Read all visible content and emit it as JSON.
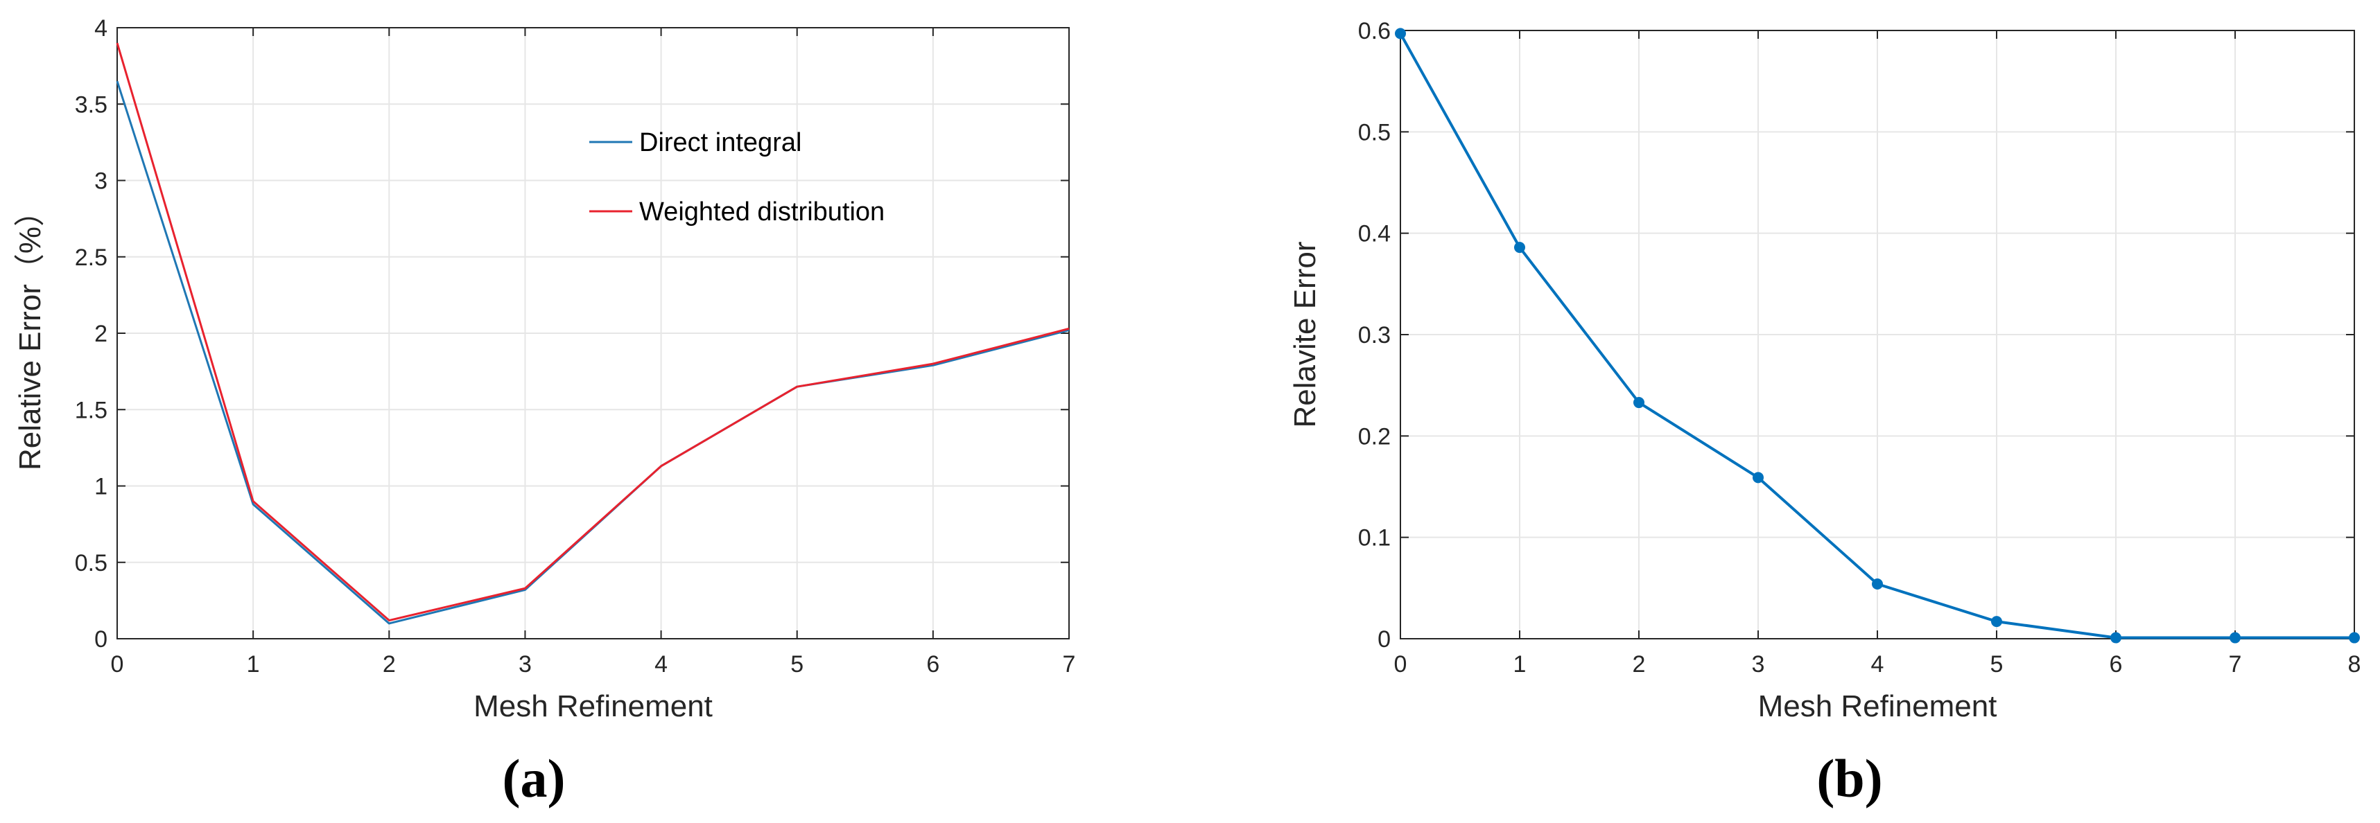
{
  "chart_data": [
    {
      "panel": "a",
      "type": "line",
      "caption": "(a)",
      "xlabel": "Mesh Refinement",
      "ylabel": "Relative Error（%）",
      "xlim": [
        0,
        7
      ],
      "ylim": [
        0,
        4
      ],
      "xticks": [
        0,
        1,
        2,
        3,
        4,
        5,
        6,
        7
      ],
      "yticks": [
        0,
        0.5,
        1,
        1.5,
        2,
        2.5,
        3,
        3.5,
        4
      ],
      "grid": true,
      "legend_placement": "upper-middle inside",
      "series": [
        {
          "name": "Direct integral",
          "color": "#1f77b4",
          "x": [
            0,
            1,
            2,
            3,
            4,
            5,
            6,
            7
          ],
          "y": [
            3.65,
            0.88,
            0.1,
            0.32,
            1.13,
            1.65,
            1.79,
            2.02
          ]
        },
        {
          "name": "Weighted distribution",
          "color": "#e8222e",
          "x": [
            0,
            1,
            2,
            3,
            4,
            5,
            6,
            7
          ],
          "y": [
            3.9,
            0.9,
            0.12,
            0.33,
            1.13,
            1.65,
            1.8,
            2.03
          ]
        }
      ]
    },
    {
      "panel": "b",
      "type": "line",
      "caption": "(b)",
      "xlabel": "Mesh Refinement",
      "ylabel": "Relavite Error",
      "xlim": [
        0,
        8
      ],
      "ylim": [
        0,
        0.6
      ],
      "xticks": [
        0,
        1,
        2,
        3,
        4,
        5,
        6,
        7,
        8
      ],
      "yticks": [
        0,
        0.1,
        0.2,
        0.3,
        0.4,
        0.5,
        0.6
      ],
      "grid": true,
      "markers": true,
      "series": [
        {
          "color": "#0072bd",
          "x": [
            0,
            1,
            2,
            3,
            4,
            5,
            6,
            7,
            8
          ],
          "y": [
            0.597,
            0.386,
            0.233,
            0.159,
            0.054,
            0.017,
            0.001,
            0.001,
            0.001
          ]
        }
      ]
    }
  ]
}
